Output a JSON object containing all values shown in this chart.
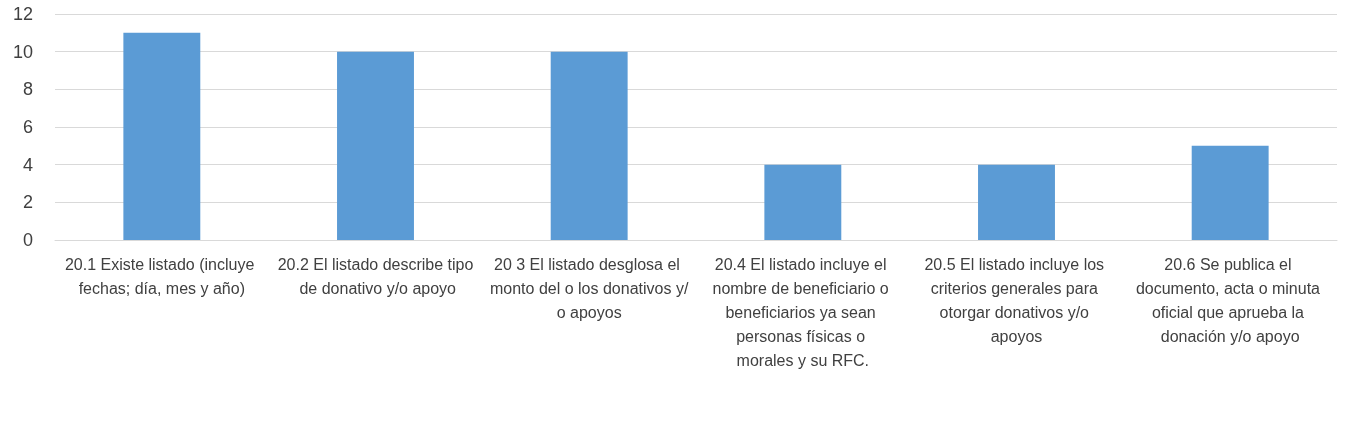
{
  "chart_data": {
    "type": "bar",
    "categories": [
      "20.1 Existe listado (incluye fechas; día, mes y año)",
      "20.2 El listado describe tipo de donativo y/o apoyo",
      "20 3 El listado desglosa el monto del o los donativos y/o apoyos",
      "20.4 El listado incluye el nombre de beneficiario o beneficiarios ya sean personas físicas o morales y su RFC.",
      "20.5 El listado incluye los criterios generales para otorgar donativos y/o apoyos",
      "20.6 Se publica el documento, acta o minuta oficial que aprueba la donación y/o apoyo"
    ],
    "values": [
      11,
      10,
      10,
      4,
      4,
      5
    ],
    "color": "#5b9bd5",
    "ylim": [
      0,
      12
    ],
    "yticks": [
      0,
      2,
      4,
      6,
      8,
      10,
      12
    ],
    "grid": "y"
  }
}
